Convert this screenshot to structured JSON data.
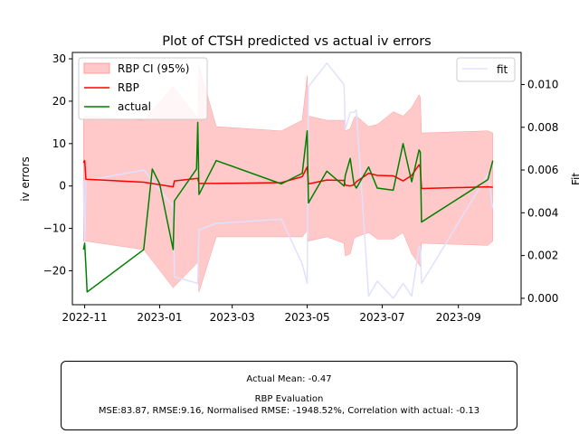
{
  "chart_data": {
    "type": "line",
    "title": "Plot of CTSH predicted vs actual iv errors",
    "xlabel": "",
    "ylabel": "iv errors",
    "y2label": "Fit",
    "xlim": [
      "2022-10-22",
      "2023-10-22"
    ],
    "ylim": [
      -28.0,
      31.5
    ],
    "y2lim": [
      -0.0003,
      0.0115
    ],
    "x_ticks": [
      "2022-11",
      "2023-01",
      "2023-03",
      "2023-05",
      "2023-07",
      "2023-09"
    ],
    "x_tick_dates": [
      "2022-11-01",
      "2023-01-01",
      "2023-03-01",
      "2023-05-01",
      "2023-07-01",
      "2023-09-01"
    ],
    "y_ticks": [
      -20,
      -10,
      0,
      10,
      20,
      30
    ],
    "y2_ticks": [
      "0.000",
      "0.002",
      "0.004",
      "0.006",
      "0.008",
      "0.010"
    ],
    "y2_tick_values": [
      0.0,
      0.002,
      0.004,
      0.006,
      0.008,
      0.01
    ],
    "legend_left": {
      "placement": "upper-left",
      "entries": [
        "RBP CI (95%)",
        "RBP",
        "actual"
      ]
    },
    "legend_right": {
      "placement": "upper-right",
      "entries": [
        "fit"
      ]
    },
    "colors": {
      "ci": "#ffc9c9",
      "ci_edge": "#ff9d9d",
      "rbp": "#ff0000",
      "actual": "#008000",
      "fit": "#e0e0ff"
    },
    "series": [
      {
        "name": "RBP CI (95%)",
        "kind": "band",
        "axis": "left",
        "x": [
          "2022-10-31",
          "2022-11-01",
          "2022-11-02",
          "2022-12-19",
          "2023-01-12",
          "2023-02-01",
          "2023-02-02",
          "2023-02-16",
          "2023-04-10",
          "2023-04-27",
          "2023-05-01",
          "2023-05-02",
          "2023-05-17",
          "2023-05-31",
          "2023-06-01",
          "2023-06-05",
          "2023-06-08",
          "2023-06-10",
          "2023-06-20",
          "2023-06-27",
          "2023-07-10",
          "2023-07-18",
          "2023-07-25",
          "2023-07-31",
          "2023-08-01",
          "2023-08-02",
          "2023-09-25",
          "2023-09-29"
        ],
        "lower": [
          -13.0,
          -13.2,
          -13.0,
          -15.0,
          -24.0,
          -18.0,
          -25.0,
          -12.0,
          -12.0,
          -12.0,
          -10.5,
          -13.0,
          -12.0,
          -13.5,
          -16.5,
          -16.0,
          -12.5,
          -12.0,
          -11.0,
          -12.5,
          -12.5,
          -11.0,
          -16.0,
          -18.5,
          -19.0,
          -13.5,
          -14.0,
          -13.0
        ],
        "upper": [
          16.5,
          16.0,
          16.5,
          15.5,
          23.5,
          16.0,
          28.5,
          14.0,
          13.0,
          15.5,
          26.0,
          16.5,
          15.5,
          15.5,
          13.0,
          13.5,
          16.0,
          16.5,
          14.0,
          14.5,
          17.5,
          16.5,
          18.5,
          21.5,
          21.0,
          12.5,
          13.0,
          12.5
        ]
      },
      {
        "name": "RBP",
        "kind": "line",
        "axis": "left",
        "x": [
          "2022-10-31",
          "2022-11-01",
          "2022-11-02",
          "2022-12-19",
          "2023-01-12",
          "2023-01-13",
          "2023-02-01",
          "2023-02-02",
          "2023-02-16",
          "2023-04-10",
          "2023-04-27",
          "2023-05-01",
          "2023-05-02",
          "2023-05-17",
          "2023-05-31",
          "2023-06-01",
          "2023-06-05",
          "2023-06-08",
          "2023-06-10",
          "2023-06-20",
          "2023-06-27",
          "2023-07-10",
          "2023-07-18",
          "2023-07-25",
          "2023-07-31",
          "2023-08-01",
          "2023-08-02",
          "2023-09-25",
          "2023-09-29"
        ],
        "values": [
          5.5,
          6.0,
          1.6,
          0.9,
          -0.2,
          1.2,
          1.8,
          0.6,
          0.6,
          0.8,
          2.2,
          4.5,
          0.5,
          1.4,
          1.3,
          0.2,
          0.0,
          0.3,
          1.0,
          3.0,
          2.5,
          2.4,
          1.2,
          2.5,
          5.0,
          4.3,
          -0.6,
          -0.2,
          -0.3
        ]
      },
      {
        "name": "actual",
        "kind": "line",
        "axis": "left",
        "x": [
          "2022-10-31",
          "2022-11-01",
          "2022-11-02",
          "2022-11-03",
          "2022-12-19",
          "2022-12-26",
          "2023-01-01",
          "2023-01-12",
          "2023-01-13",
          "2023-01-31",
          "2023-02-01",
          "2023-02-02",
          "2023-02-16",
          "2023-04-10",
          "2023-04-27",
          "2023-05-01",
          "2023-05-02",
          "2023-05-17",
          "2023-05-31",
          "2023-06-01",
          "2023-06-05",
          "2023-06-08",
          "2023-06-10",
          "2023-06-20",
          "2023-06-27",
          "2023-07-10",
          "2023-07-18",
          "2023-07-25",
          "2023-07-31",
          "2023-08-01",
          "2023-08-02",
          "2023-09-25",
          "2023-09-29"
        ],
        "values": [
          -15.0,
          -13.5,
          -19.0,
          -25.0,
          -15.0,
          4.0,
          0.5,
          -15.0,
          -3.5,
          4.0,
          15.0,
          -2.0,
          6.0,
          0.5,
          3.0,
          13.0,
          -4.0,
          3.5,
          0.0,
          2.5,
          6.5,
          0.5,
          -0.5,
          4.5,
          -0.5,
          -1.0,
          10.0,
          1.0,
          8.5,
          8.0,
          -8.5,
          1.5,
          6.0
        ]
      },
      {
        "name": "fit",
        "kind": "line",
        "axis": "right",
        "x": [
          "2022-10-31",
          "2022-11-01",
          "2022-11-02",
          "2022-12-19",
          "2023-01-12",
          "2023-01-13",
          "2023-02-01",
          "2023-02-02",
          "2023-02-16",
          "2023-04-10",
          "2023-04-27",
          "2023-05-01",
          "2023-05-02",
          "2023-05-17",
          "2023-05-31",
          "2023-06-01",
          "2023-06-05",
          "2023-06-08",
          "2023-06-10",
          "2023-06-20",
          "2023-06-27",
          "2023-07-10",
          "2023-07-18",
          "2023-07-25",
          "2023-07-31",
          "2023-08-01",
          "2023-08-02",
          "2023-09-25",
          "2023-09-29"
        ],
        "values": [
          0.0055,
          0.0024,
          0.0055,
          0.006,
          0.0043,
          0.001,
          0.0007,
          0.0032,
          0.0035,
          0.0037,
          0.0016,
          0.0007,
          0.0099,
          0.011,
          0.01,
          0.0079,
          0.0087,
          0.0087,
          0.0088,
          0.0001,
          0.0008,
          0.0,
          0.0007,
          0.0001,
          0.0024,
          0.0024,
          0.0007,
          0.0058,
          0.0042
        ]
      }
    ]
  },
  "eval_box": {
    "line1": "Actual Mean: -0.47",
    "line2": "RBP Evaluation",
    "line3": "MSE:83.87, RMSE:9.16, Normalised RMSE: -1948.52%, Correlation with actual: -0.13"
  }
}
